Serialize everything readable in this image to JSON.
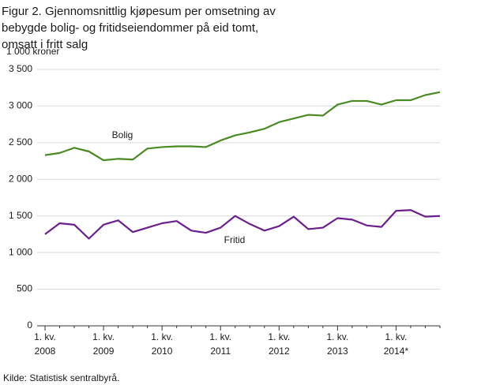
{
  "chart_data": {
    "type": "line",
    "title": "Figur 2. Gjennomsnittlig kjøpesum per omsetning av bebygde bolig- og fritidseiendommer på eid tomt, omsatt i fritt salg",
    "y_label": "1 000 kroner",
    "source": "Kilde: Statistisk sentralbyrå.",
    "categories": [
      "1. kv.\n2008",
      null,
      null,
      null,
      "1. kv.\n2009",
      null,
      null,
      null,
      "1. kv.\n2010",
      null,
      null,
      null,
      "1. kv.\n2011",
      null,
      null,
      null,
      "1. kv.\n2012",
      null,
      null,
      null,
      "1. kv.\n2013",
      null,
      null,
      null,
      "1. kv.\n2014*",
      null,
      null,
      null
    ],
    "series": [
      {
        "name": "Bolig",
        "color": "#4b8b23",
        "values": [
          2330,
          2360,
          2430,
          2380,
          2260,
          2280,
          2270,
          2420,
          2440,
          2450,
          2450,
          2440,
          2530,
          2600,
          2640,
          2690,
          2780,
          2830,
          2880,
          2870,
          3020,
          3070,
          3070,
          3020,
          3080,
          3080,
          3150,
          3190
        ]
      },
      {
        "name": "Fritid",
        "color": "#6b1f8f",
        "values": [
          1250,
          1400,
          1380,
          1190,
          1380,
          1440,
          1280,
          1340,
          1400,
          1430,
          1300,
          1270,
          1340,
          1500,
          1390,
          1300,
          1360,
          1490,
          1320,
          1340,
          1470,
          1450,
          1370,
          1350,
          1570,
          1580,
          1490,
          1500
        ]
      }
    ],
    "ylim": [
      0,
      3500
    ],
    "yticks": [
      0,
      500,
      {
        "value": 1000,
        "label": "1 000"
      },
      {
        "value": 1500,
        "label": "1 500"
      },
      {
        "value": 2000,
        "label": "2 000"
      },
      {
        "value": 2500,
        "label": "2 500"
      },
      {
        "value": 3000,
        "label": "3 000"
      },
      {
        "value": 3500,
        "label": "3 500"
      }
    ],
    "grid": true
  }
}
